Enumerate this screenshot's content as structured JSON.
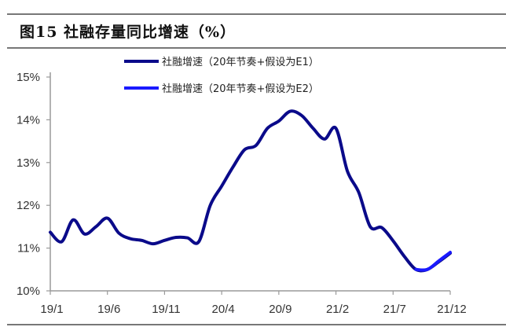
{
  "title": "图15 社融存量同比增速（%）",
  "colors": {
    "series_e1": "#0a0a8a",
    "series_e2": "#1a1aff",
    "axis": "#9a9a9a",
    "rule": "#777777"
  },
  "chart_data": {
    "type": "line",
    "title": "图15 社融存量同比增速（%）",
    "xlabel": "",
    "ylabel": "",
    "ylim": [
      10,
      15
    ],
    "yticks": [
      "10%",
      "11%",
      "12%",
      "13%",
      "14%",
      "15%"
    ],
    "xticks": [
      "19/1",
      "19/6",
      "19/11",
      "20/4",
      "20/9",
      "21/2",
      "21/7",
      "21/12"
    ],
    "grid": false,
    "legend_position": "top-center",
    "x": [
      "19/1",
      "19/2",
      "19/3",
      "19/4",
      "19/5",
      "19/6",
      "19/7",
      "19/8",
      "19/9",
      "19/10",
      "19/11",
      "19/12",
      "20/1",
      "20/2",
      "20/3",
      "20/4",
      "20/5",
      "20/6",
      "20/7",
      "20/8",
      "20/9",
      "20/10",
      "20/11",
      "20/12",
      "21/1",
      "21/2",
      "21/3",
      "21/4",
      "21/5",
      "21/6",
      "21/7",
      "21/8",
      "21/9",
      "21/10",
      "21/11",
      "21/12"
    ],
    "series": [
      {
        "name": "社融增速（20年节奏+假设为E1）",
        "values": [
          11.37,
          11.15,
          11.66,
          11.33,
          11.5,
          11.7,
          11.35,
          11.22,
          11.18,
          11.1,
          11.18,
          11.25,
          11.24,
          11.15,
          12.0,
          12.45,
          12.9,
          13.3,
          13.4,
          13.8,
          13.97,
          14.2,
          14.1,
          13.8,
          13.55,
          13.8,
          12.8,
          12.3,
          11.5,
          11.48,
          11.17,
          10.8,
          10.5,
          10.5,
          10.68,
          10.88
        ]
      },
      {
        "name": "社融增速（20年节奏+假设为E2）",
        "values": [
          null,
          null,
          null,
          null,
          null,
          null,
          null,
          null,
          null,
          null,
          null,
          null,
          null,
          null,
          null,
          null,
          null,
          null,
          null,
          null,
          null,
          null,
          null,
          null,
          null,
          null,
          null,
          null,
          null,
          null,
          null,
          null,
          10.5,
          10.5,
          10.7,
          10.9
        ]
      }
    ]
  },
  "legend": [
    {
      "label": "社融增速（20年节奏+假设为E1）"
    },
    {
      "label": "社融增速（20年节奏+假设为E2）"
    }
  ]
}
